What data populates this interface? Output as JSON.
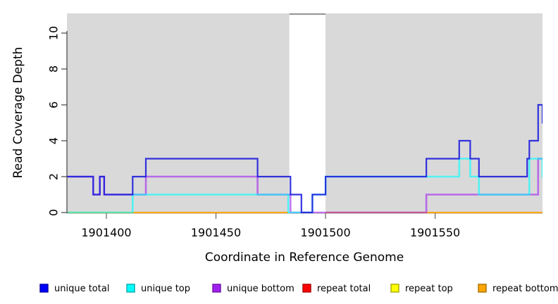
{
  "figure": {
    "plot_bg": "#d9d9d9",
    "outer_bg": "#ffffff",
    "axis_color": "#444444",
    "tick_color": "#666666"
  },
  "chart_data": {
    "type": "line",
    "subtype": "step",
    "title": "",
    "xlabel": "Coordinate in Reference Genome",
    "ylabel": "Read Coverage Depth",
    "xlim": [
      1901382,
      1901599.6
    ],
    "ylim": [
      0,
      11.1
    ],
    "grid": "off",
    "legend_position": "bottom",
    "x_ticks": [
      1901400,
      1901450,
      1901500,
      1901550
    ],
    "x_tick_labels": [
      "1901400",
      "1901450",
      "1901500",
      "1901550"
    ],
    "y_ticks": [
      0,
      2,
      4,
      6,
      8,
      10
    ],
    "y_tick_labels": [
      "0",
      "2",
      "4",
      "6",
      "8",
      "10"
    ],
    "masked_region": {
      "start": 1901483.5,
      "end": 1901500,
      "fill": "#ffffff",
      "top_border": "#999999"
    },
    "series": [
      {
        "key": "repeat_total",
        "name": "repeat total",
        "color": "#dd0000",
        "opacity": 1,
        "width": 1.8,
        "pieces": [
          {
            "points": [
              [
                1901382,
                0
              ]
            ],
            "end_x": 1901483
          },
          {
            "points": [
              [
                1901500,
                0
              ]
            ],
            "end_x": 1901599.6
          }
        ]
      },
      {
        "key": "repeat_top",
        "name": "repeat top",
        "color": "#ffff00",
        "opacity": 1,
        "width": 1.8,
        "pieces": [
          {
            "points": [
              [
                1901382,
                0
              ]
            ],
            "end_x": 1901483
          },
          {
            "points": [
              [
                1901500,
                0
              ]
            ],
            "end_x": 1901599.6
          }
        ]
      },
      {
        "key": "repeat_bottom",
        "name": "repeat bottom",
        "color": "#ffa500",
        "opacity": 1,
        "width": 2,
        "pieces": [
          {
            "points": [
              [
                1901382,
                0
              ]
            ],
            "end_x": 1901483
          },
          {
            "points": [
              [
                1901500,
                0
              ]
            ],
            "end_x": 1901599.6
          }
        ]
      },
      {
        "key": "unique_bottom",
        "name": "unique bottom",
        "color": "#a020f0",
        "opacity": 0.6,
        "width": 2.6,
        "pieces": [
          {
            "points": [
              [
                1901382,
                2
              ],
              [
                1901394,
                1
              ],
              [
                1901397,
                2
              ],
              [
                1901399,
                1
              ],
              [
                1901418,
                2
              ],
              [
                1901469,
                1
              ],
              [
                1901484,
                0
              ],
              [
                1901546,
                1
              ],
              [
                1901597,
                3
              ]
            ],
            "end_x": 1901599.6
          }
        ]
      },
      {
        "key": "unique_top",
        "name": "unique top",
        "color": "#00ffff",
        "opacity": 0.62,
        "width": 2.6,
        "pieces": [
          {
            "points": [
              [
                1901382,
                0
              ],
              [
                1901412,
                1
              ],
              [
                1901483,
                0
              ],
              [
                1901494,
                1
              ],
              [
                1901500,
                2
              ],
              [
                1901561,
                3
              ],
              [
                1901566,
                2
              ],
              [
                1901570,
                1
              ],
              [
                1901593,
                3
              ],
              [
                1901599,
                2
              ]
            ],
            "end_x": 1901599.6
          }
        ]
      },
      {
        "key": "unique_total",
        "name": "unique total",
        "color": "#2323dd",
        "opacity": 0.92,
        "width": 2.2,
        "pieces": [
          {
            "points": [
              [
                1901382,
                2
              ],
              [
                1901394,
                1
              ],
              [
                1901397,
                2
              ],
              [
                1901399,
                1
              ],
              [
                1901412,
                2
              ],
              [
                1901418,
                3
              ],
              [
                1901469,
                2
              ],
              [
                1901484,
                1
              ],
              [
                1901489,
                0
              ],
              [
                1901494,
                1
              ],
              [
                1901500,
                2
              ],
              [
                1901546,
                3
              ],
              [
                1901561,
                4
              ],
              [
                1901566,
                3
              ],
              [
                1901570,
                2
              ],
              [
                1901592,
                3
              ],
              [
                1901593,
                4
              ],
              [
                1901597,
                6
              ],
              [
                1901599,
                5
              ]
            ],
            "end_x": 1901599.6
          }
        ]
      }
    ]
  },
  "legend": {
    "items": [
      {
        "label": "unique total",
        "color": "#0000ff",
        "border": "#0000a8"
      },
      {
        "label": "unique top",
        "color": "#00ffff",
        "border": "#00a8a8"
      },
      {
        "label": "unique bottom",
        "color": "#a020f0",
        "border": "#6c12a6"
      },
      {
        "label": "repeat total",
        "color": "#ff0000",
        "border": "#a80000"
      },
      {
        "label": "repeat top",
        "color": "#ffff00",
        "border": "#a8a800"
      },
      {
        "label": "repeat bottom",
        "color": "#ffa500",
        "border": "#a87000"
      }
    ]
  }
}
